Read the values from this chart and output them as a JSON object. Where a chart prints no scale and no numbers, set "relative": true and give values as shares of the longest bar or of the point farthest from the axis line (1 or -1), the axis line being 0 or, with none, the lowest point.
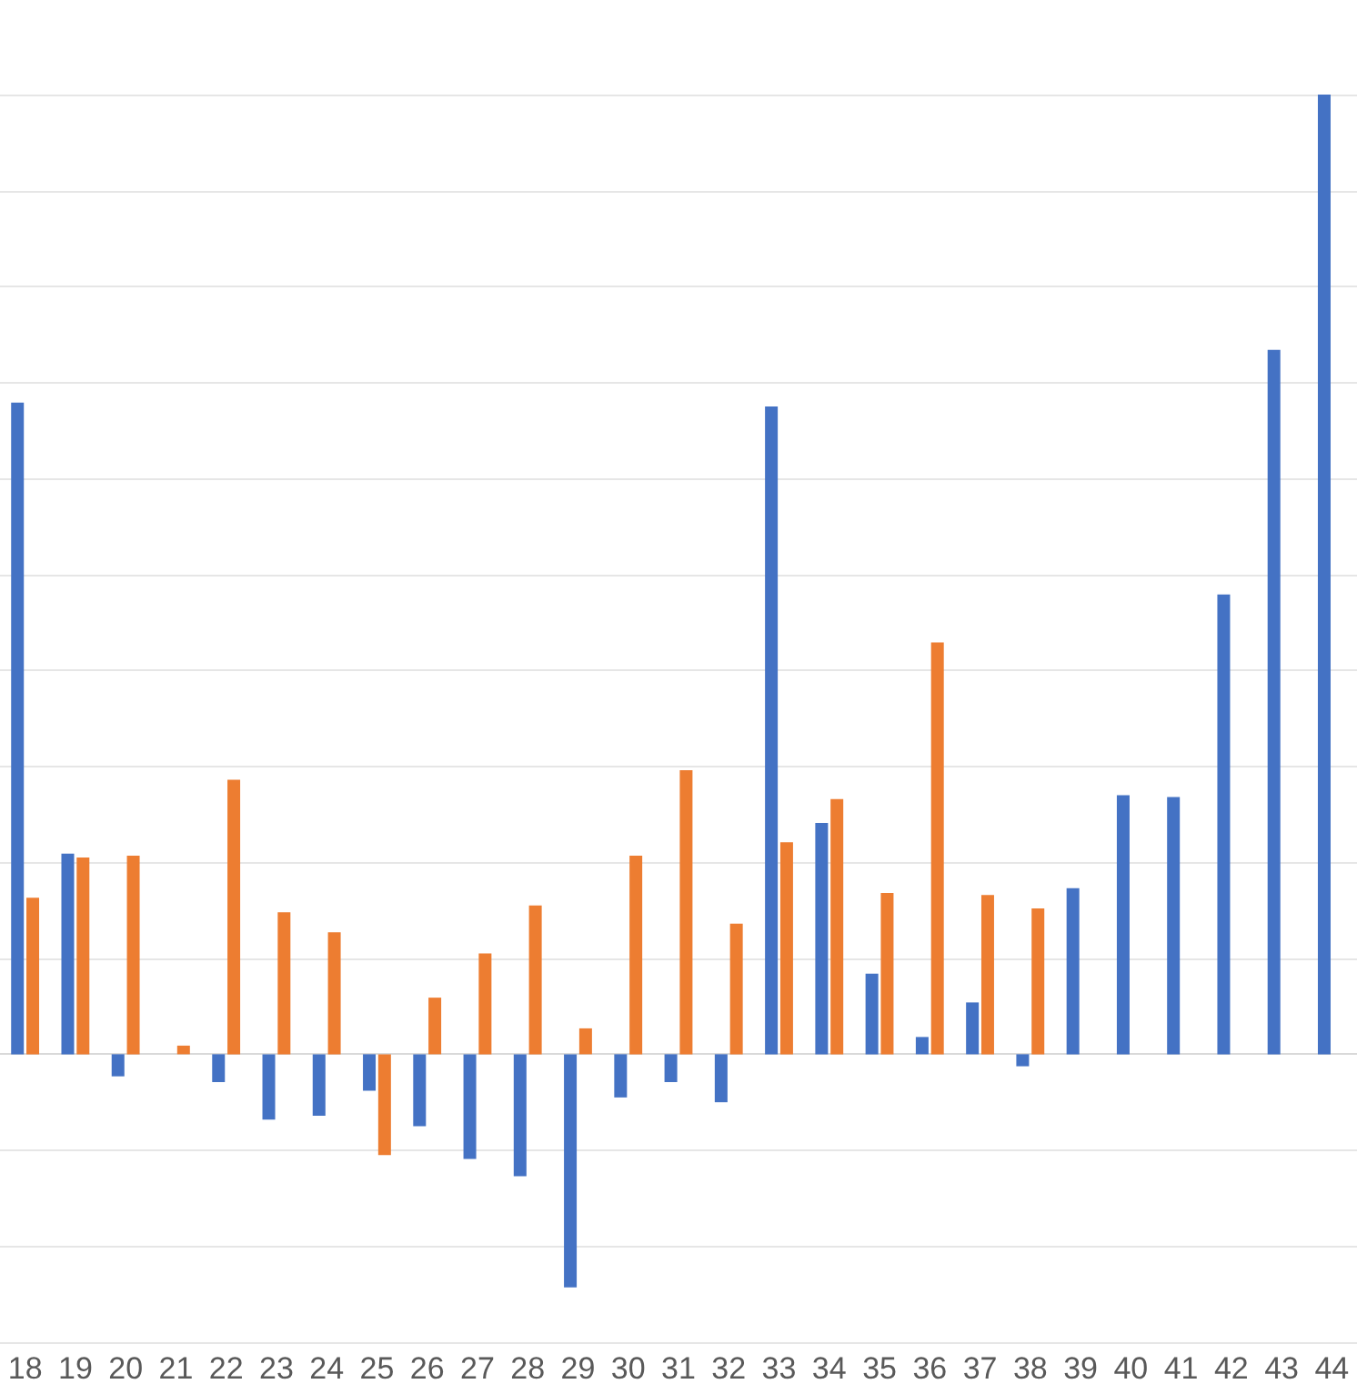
{
  "chart_data": {
    "type": "bar",
    "relative": true,
    "grid": "y",
    "categories": [
      "18",
      "19",
      "20",
      "21",
      "22",
      "23",
      "24",
      "25",
      "26",
      "27",
      "28",
      "29",
      "30",
      "31",
      "32",
      "33",
      "34",
      "35",
      "36",
      "37",
      "38",
      "39",
      "40",
      "41",
      "42",
      "43",
      "44"
    ],
    "series": [
      {
        "color": "#4472c4",
        "values": [
          0.679,
          0.209,
          -0.023,
          null,
          -0.029,
          -0.068,
          -0.064,
          -0.038,
          -0.075,
          -0.109,
          -0.127,
          -0.243,
          -0.045,
          -0.029,
          -0.05,
          0.675,
          0.241,
          0.084,
          0.018,
          0.054,
          -0.0125,
          0.173,
          0.27,
          0.268,
          0.479,
          0.734,
          1
        ]
      },
      {
        "color": "#ed7d31",
        "values": [
          0.163,
          0.205,
          0.207,
          0.009,
          0.286,
          0.148,
          0.127,
          -0.105,
          0.059,
          0.105,
          0.155,
          0.027,
          0.207,
          0.296,
          0.136,
          0.221,
          0.266,
          0.168,
          0.429,
          0.166,
          0.152,
          null,
          null,
          null,
          null,
          null,
          null
        ]
      }
    ]
  }
}
